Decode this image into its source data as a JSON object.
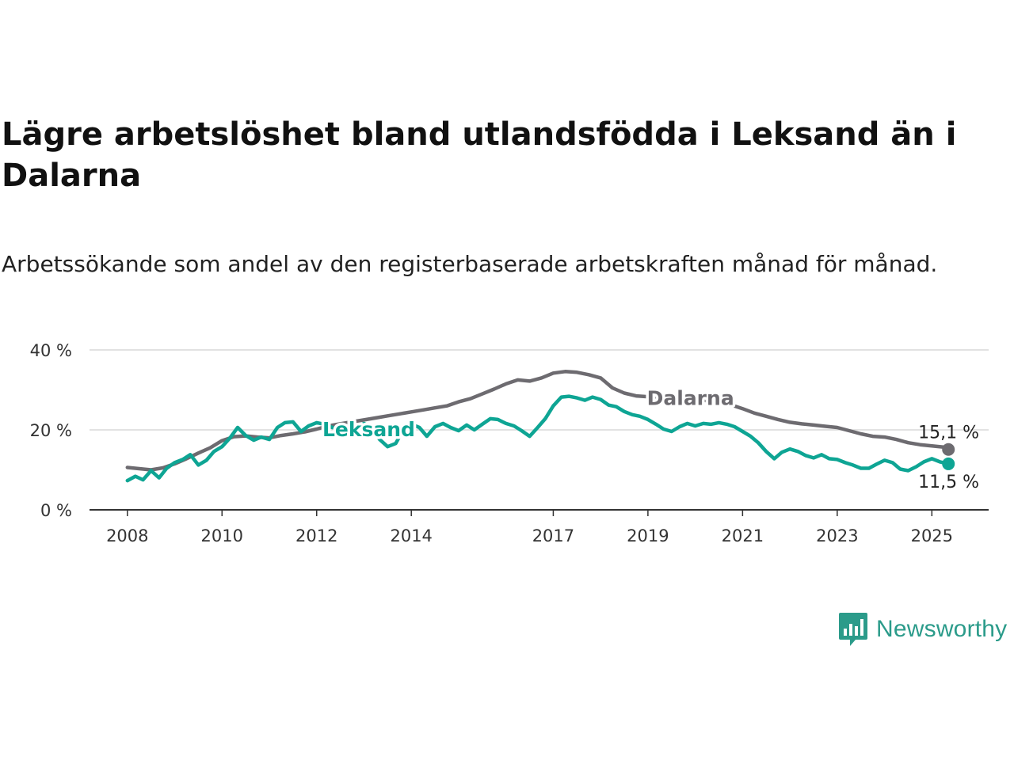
{
  "title": "Lägre arbetslöshet bland utlandsfödda i Leksand än i Dalarna",
  "subtitle": "Arbetssökande som andel av den registerbaserade arbetskraften månad för månad.",
  "brand": "Newsworthy",
  "chart_data": {
    "type": "line",
    "title": "Lägre arbetslöshet bland utlandsfödda i Leksand än i Dalarna",
    "subtitle": "Arbetssökande som andel av den registerbaserade arbetskraften månad för månad.",
    "ylim": [
      0,
      40
    ],
    "y_ticks": [
      {
        "value": 0,
        "label": "0 %"
      },
      {
        "value": 20,
        "label": "20 %"
      },
      {
        "value": 40,
        "label": "40 %"
      }
    ],
    "x_ticks": [
      "2008",
      "2010",
      "2012",
      "2014",
      "2017",
      "2019",
      "2021",
      "2023",
      "2025"
    ],
    "grid": "horizontal",
    "series": [
      {
        "name": "Dalarna",
        "color": "#6d6b70",
        "end_label": "15,1 %",
        "points": [
          [
            2008.0,
            10.6
          ],
          [
            2008.25,
            10.3
          ],
          [
            2008.5,
            10.0
          ],
          [
            2008.75,
            10.5
          ],
          [
            2009.0,
            11.5
          ],
          [
            2009.25,
            12.8
          ],
          [
            2009.5,
            14.2
          ],
          [
            2009.75,
            15.5
          ],
          [
            2010.0,
            17.3
          ],
          [
            2010.25,
            18.3
          ],
          [
            2010.5,
            18.5
          ],
          [
            2010.75,
            18.2
          ],
          [
            2011.0,
            18.0
          ],
          [
            2011.25,
            18.6
          ],
          [
            2011.5,
            19.0
          ],
          [
            2011.75,
            19.5
          ],
          [
            2012.0,
            20.2
          ],
          [
            2012.25,
            21.0
          ],
          [
            2012.5,
            21.5
          ],
          [
            2012.75,
            22.0
          ],
          [
            2013.0,
            22.5
          ],
          [
            2013.25,
            23.0
          ],
          [
            2013.5,
            23.5
          ],
          [
            2013.75,
            24.0
          ],
          [
            2014.0,
            24.5
          ],
          [
            2014.25,
            25.0
          ],
          [
            2014.5,
            25.5
          ],
          [
            2014.75,
            26.0
          ],
          [
            2015.0,
            27.0
          ],
          [
            2015.25,
            27.8
          ],
          [
            2015.5,
            29.0
          ],
          [
            2015.75,
            30.2
          ],
          [
            2016.0,
            31.5
          ],
          [
            2016.25,
            32.5
          ],
          [
            2016.5,
            32.2
          ],
          [
            2016.75,
            33.0
          ],
          [
            2017.0,
            34.2
          ],
          [
            2017.25,
            34.6
          ],
          [
            2017.5,
            34.4
          ],
          [
            2017.75,
            33.8
          ],
          [
            2018.0,
            33.0
          ],
          [
            2018.25,
            30.5
          ],
          [
            2018.5,
            29.2
          ],
          [
            2018.75,
            28.5
          ],
          [
            2019.0,
            28.3
          ],
          [
            2019.25,
            28.2
          ],
          [
            2019.5,
            28.0
          ],
          [
            2019.75,
            27.8
          ],
          [
            2020.0,
            27.6
          ],
          [
            2020.25,
            27.3
          ],
          [
            2020.5,
            27.0
          ],
          [
            2020.75,
            26.3
          ],
          [
            2021.0,
            25.3
          ],
          [
            2021.25,
            24.2
          ],
          [
            2021.5,
            23.4
          ],
          [
            2021.75,
            22.6
          ],
          [
            2022.0,
            21.9
          ],
          [
            2022.25,
            21.5
          ],
          [
            2022.5,
            21.2
          ],
          [
            2022.75,
            20.9
          ],
          [
            2023.0,
            20.6
          ],
          [
            2023.25,
            19.8
          ],
          [
            2023.5,
            19.0
          ],
          [
            2023.75,
            18.4
          ],
          [
            2024.0,
            18.2
          ],
          [
            2024.25,
            17.6
          ],
          [
            2024.5,
            16.8
          ],
          [
            2024.75,
            16.3
          ],
          [
            2025.0,
            16.0
          ],
          [
            2025.25,
            15.7
          ],
          [
            2025.35,
            15.1
          ]
        ]
      },
      {
        "name": "Leksand",
        "color": "#0ea594",
        "end_label": "11,5 %",
        "points": [
          [
            2008.0,
            7.3
          ],
          [
            2008.17,
            8.4
          ],
          [
            2008.33,
            7.5
          ],
          [
            2008.5,
            9.8
          ],
          [
            2008.67,
            8.0
          ],
          [
            2008.83,
            10.4
          ],
          [
            2009.0,
            11.8
          ],
          [
            2009.17,
            12.6
          ],
          [
            2009.33,
            13.8
          ],
          [
            2009.5,
            11.2
          ],
          [
            2009.67,
            12.4
          ],
          [
            2009.83,
            14.6
          ],
          [
            2010.0,
            15.8
          ],
          [
            2010.17,
            18.0
          ],
          [
            2010.33,
            20.6
          ],
          [
            2010.5,
            18.6
          ],
          [
            2010.67,
            17.4
          ],
          [
            2010.83,
            18.2
          ],
          [
            2011.0,
            17.6
          ],
          [
            2011.17,
            20.6
          ],
          [
            2011.33,
            21.8
          ],
          [
            2011.5,
            22.0
          ],
          [
            2011.67,
            19.6
          ],
          [
            2011.83,
            21.0
          ],
          [
            2012.0,
            21.8
          ],
          [
            2012.17,
            21.4
          ],
          [
            2012.33,
            20.6
          ],
          [
            2012.5,
            20.2
          ],
          [
            2012.67,
            19.0
          ],
          [
            2012.83,
            20.4
          ],
          [
            2013.0,
            21.6
          ],
          [
            2013.17,
            20.4
          ],
          [
            2013.33,
            17.6
          ],
          [
            2013.5,
            15.8
          ],
          [
            2013.67,
            16.6
          ],
          [
            2013.83,
            20.0
          ],
          [
            2014.0,
            21.4
          ],
          [
            2014.17,
            20.6
          ],
          [
            2014.33,
            18.4
          ],
          [
            2014.5,
            20.8
          ],
          [
            2014.67,
            21.6
          ],
          [
            2014.83,
            20.6
          ],
          [
            2015.0,
            19.8
          ],
          [
            2015.17,
            21.2
          ],
          [
            2015.33,
            20.0
          ],
          [
            2015.5,
            21.4
          ],
          [
            2015.67,
            22.8
          ],
          [
            2015.83,
            22.6
          ],
          [
            2016.0,
            21.6
          ],
          [
            2016.17,
            21.0
          ],
          [
            2016.33,
            19.8
          ],
          [
            2016.5,
            18.4
          ],
          [
            2016.67,
            20.6
          ],
          [
            2016.83,
            22.8
          ],
          [
            2017.0,
            26.0
          ],
          [
            2017.17,
            28.2
          ],
          [
            2017.33,
            28.4
          ],
          [
            2017.5,
            28.0
          ],
          [
            2017.67,
            27.4
          ],
          [
            2017.83,
            28.2
          ],
          [
            2018.0,
            27.6
          ],
          [
            2018.17,
            26.2
          ],
          [
            2018.33,
            25.8
          ],
          [
            2018.5,
            24.6
          ],
          [
            2018.67,
            23.8
          ],
          [
            2018.83,
            23.4
          ],
          [
            2019.0,
            22.6
          ],
          [
            2019.17,
            21.4
          ],
          [
            2019.33,
            20.2
          ],
          [
            2019.5,
            19.6
          ],
          [
            2019.67,
            20.8
          ],
          [
            2019.83,
            21.6
          ],
          [
            2020.0,
            21.0
          ],
          [
            2020.17,
            21.6
          ],
          [
            2020.33,
            21.4
          ],
          [
            2020.5,
            21.8
          ],
          [
            2020.67,
            21.4
          ],
          [
            2020.83,
            20.8
          ],
          [
            2021.0,
            19.6
          ],
          [
            2021.17,
            18.4
          ],
          [
            2021.33,
            16.8
          ],
          [
            2021.5,
            14.6
          ],
          [
            2021.67,
            12.8
          ],
          [
            2021.83,
            14.4
          ],
          [
            2022.0,
            15.2
          ],
          [
            2022.17,
            14.6
          ],
          [
            2022.33,
            13.6
          ],
          [
            2022.5,
            13.0
          ],
          [
            2022.67,
            13.8
          ],
          [
            2022.83,
            12.8
          ],
          [
            2023.0,
            12.6
          ],
          [
            2023.17,
            11.8
          ],
          [
            2023.33,
            11.2
          ],
          [
            2023.5,
            10.4
          ],
          [
            2023.67,
            10.4
          ],
          [
            2023.83,
            11.4
          ],
          [
            2024.0,
            12.4
          ],
          [
            2024.17,
            11.8
          ],
          [
            2024.33,
            10.2
          ],
          [
            2024.5,
            9.8
          ],
          [
            2024.67,
            10.8
          ],
          [
            2024.83,
            12.0
          ],
          [
            2025.0,
            12.8
          ],
          [
            2025.17,
            12.0
          ],
          [
            2025.35,
            11.5
          ]
        ]
      }
    ]
  }
}
